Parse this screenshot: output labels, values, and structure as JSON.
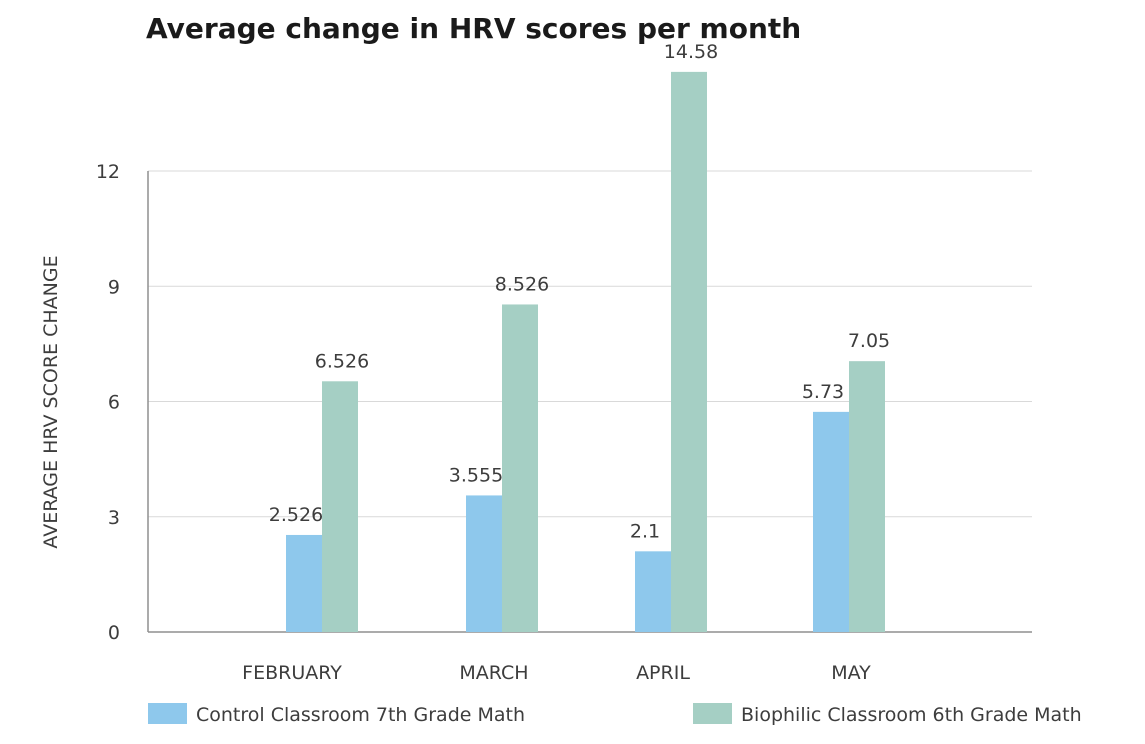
{
  "chart_data": {
    "type": "bar",
    "title": "Average change in HRV scores per month",
    "xlabel": "",
    "ylabel": "AVERAGE HRV SCORE CHANGE",
    "categories": [
      "FEBRUARY",
      "MARCH",
      "APRIL",
      "MAY"
    ],
    "ylim": [
      0,
      14.58
    ],
    "yticks": [
      0,
      3,
      6,
      9,
      12
    ],
    "grid": true,
    "legend_position": "bottom",
    "series": [
      {
        "name": "Control Classroom 7th Grade Math",
        "color": "#8ec8ec",
        "values": [
          2.526,
          3.555,
          2.1,
          5.73
        ],
        "labels": [
          "2.526",
          "3.555",
          "2.1",
          "5.73"
        ]
      },
      {
        "name": "Biophilic Classroom 6th Grade  Math",
        "color": "#a5cfc4",
        "values": [
          6.526,
          8.526,
          14.58,
          7.05
        ],
        "labels": [
          "6.526",
          "8.526",
          "14.58",
          "7.05"
        ]
      }
    ]
  }
}
